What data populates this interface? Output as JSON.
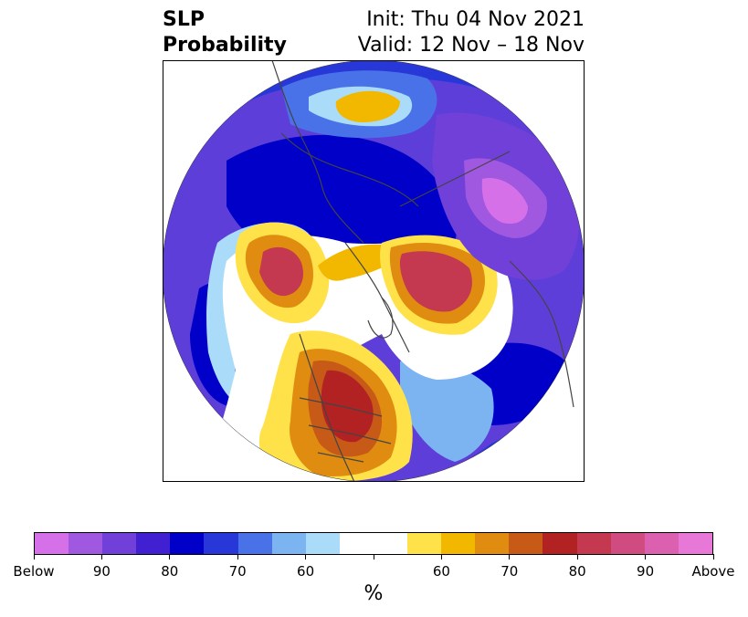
{
  "header": {
    "title_line1": "SLP",
    "title_line2": "Probability",
    "init": "Init: Thu 04 Nov 2021",
    "valid": "Valid: 12 Nov – 18 Nov"
  },
  "colorbar": {
    "unit": "%",
    "colors": [
      "#d670e8",
      "#a158e0",
      "#7040d8",
      "#4020d0",
      "#0000c8",
      "#2838d8",
      "#4a72e8",
      "#7cb4f2",
      "#aadcfa",
      "#ffffff",
      "#ffffff",
      "#ffe24a",
      "#f2b800",
      "#e08c10",
      "#c85a18",
      "#b22222",
      "#c43850",
      "#d04c80",
      "#dc60b0",
      "#e878d8"
    ],
    "tick_labels": [
      "Below",
      "90",
      "80",
      "70",
      "60",
      "",
      "60",
      "70",
      "80",
      "90",
      "Above"
    ]
  },
  "map": {
    "projection": "north-polar-stereographic",
    "colors": {
      "ocean_deep_blue": "#0000c8",
      "blue": "#2838d8",
      "purple": "#7040d8",
      "light_blue": "#aadcfa",
      "yellow": "#ffe24a",
      "orange": "#e08c10",
      "dark_red": "#b22222",
      "pink": "#d04c80",
      "magenta": "#d670e8"
    }
  }
}
